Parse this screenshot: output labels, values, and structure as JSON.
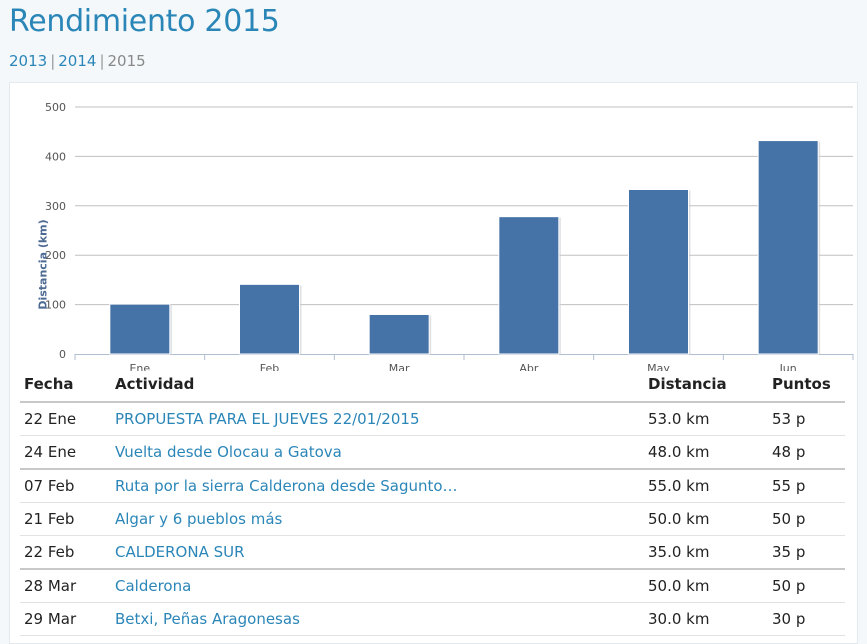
{
  "page": {
    "title": "Rendimiento 2015",
    "years": [
      {
        "label": "2013",
        "link": true
      },
      {
        "label": "2014",
        "link": true
      },
      {
        "label": "2015",
        "link": false
      }
    ]
  },
  "chart_data": {
    "type": "bar",
    "categories": [
      "Ene",
      "Feb",
      "Mar",
      "Abr",
      "May",
      "Jun"
    ],
    "values": [
      101,
      141,
      80,
      278,
      333,
      432
    ],
    "ylabel": "Distancia (km)",
    "ylim": [
      0,
      500
    ],
    "yticks": [
      0,
      100,
      200,
      300,
      400,
      500
    ],
    "grid": true,
    "colors": {
      "bar": "#4572a7",
      "grid": "#c0c0c0"
    }
  },
  "table": {
    "headers": [
      "Fecha",
      "Actividad",
      "Distancia",
      "Puntos"
    ],
    "rows": [
      {
        "fecha": "22 Ene",
        "actividad": "PROPUESTA PARA EL JUEVES 22/01/2015",
        "distancia": "53.0 km",
        "puntos": "53 p",
        "month_start": false
      },
      {
        "fecha": "24 Ene",
        "actividad": "Vuelta desde Olocau a Gatova",
        "distancia": "48.0 km",
        "puntos": "48 p",
        "month_start": false
      },
      {
        "fecha": "07 Feb",
        "actividad": "Ruta por la sierra Calderona desde Sagunto…",
        "distancia": "55.0 km",
        "puntos": "55 p",
        "month_start": true
      },
      {
        "fecha": "21 Feb",
        "actividad": "Algar y 6 pueblos más",
        "distancia": "50.0 km",
        "puntos": "50 p",
        "month_start": false
      },
      {
        "fecha": "22 Feb",
        "actividad": "CALDERONA SUR",
        "distancia": "35.0 km",
        "puntos": "35 p",
        "month_start": false
      },
      {
        "fecha": "28 Mar",
        "actividad": "Calderona",
        "distancia": "50.0 km",
        "puntos": "50 p",
        "month_start": true
      },
      {
        "fecha": "29 Mar",
        "actividad": "Betxi, Peñas Aragonesas",
        "distancia": "30.0 km",
        "puntos": "30 p",
        "month_start": false
      }
    ]
  }
}
